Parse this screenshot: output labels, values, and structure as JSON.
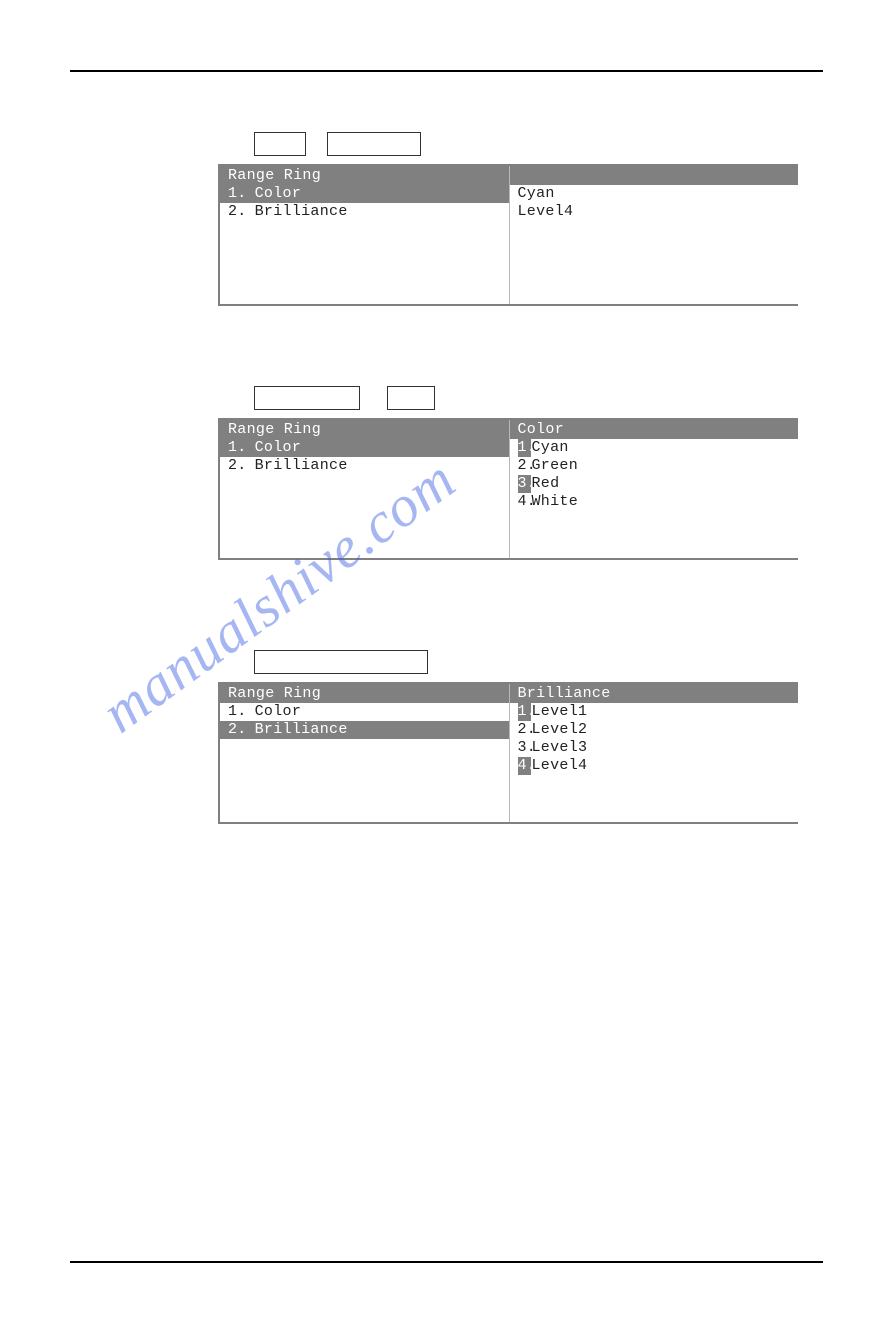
{
  "watermark": "manualshive.com",
  "section1": {
    "box1_w": 50,
    "box2_w": 92,
    "left_header": "Range Ring",
    "left_rows": [
      {
        "num": "1.",
        "label": "Color",
        "sel": true
      },
      {
        "num": "2.",
        "label": "Brilliance",
        "sel": false
      }
    ],
    "right_rows": [
      {
        "text": "Cyan"
      },
      {
        "text": "Level4"
      }
    ]
  },
  "section2": {
    "box1_w": 104,
    "box2_w": 46,
    "left_header": "Range Ring",
    "left_rows": [
      {
        "num": "1.",
        "label": "Color",
        "sel": true
      },
      {
        "num": "2.",
        "label": "Brilliance",
        "sel": false
      }
    ],
    "right_header": "Color",
    "right_rows": [
      {
        "num": "1.",
        "label": "Cyan",
        "numsel": true
      },
      {
        "num": "2.",
        "label": "Green",
        "numsel": false
      },
      {
        "num": "3.",
        "label": "Red",
        "numsel": true
      },
      {
        "num": "4.",
        "label": "White",
        "numsel": false
      }
    ]
  },
  "section3": {
    "box1_w": 172,
    "left_header": "Range Ring",
    "left_rows": [
      {
        "num": "1.",
        "label": "Color",
        "sel": false
      },
      {
        "num": "2.",
        "label": "Brilliance",
        "sel": true
      }
    ],
    "right_header": "Brilliance",
    "right_rows": [
      {
        "num": "1.",
        "label": "Level1",
        "numsel": true
      },
      {
        "num": "2.",
        "label": "Level2",
        "numsel": false
      },
      {
        "num": "3.",
        "label": "Level3",
        "numsel": false
      },
      {
        "num": "4.",
        "label": "Level4",
        "numsel": true
      }
    ]
  }
}
